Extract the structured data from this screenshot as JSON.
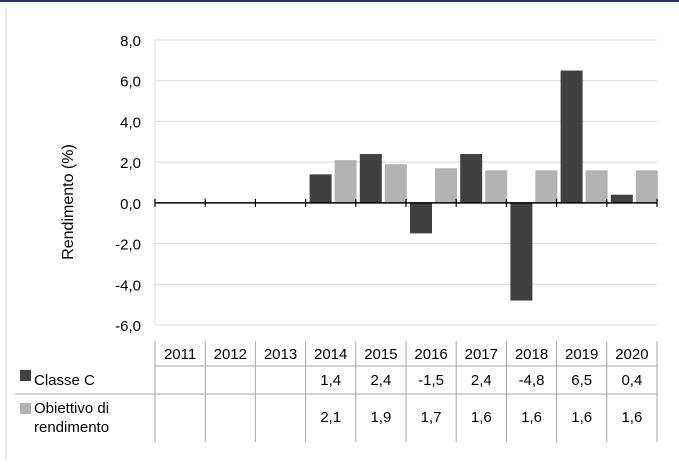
{
  "chart_data": {
    "type": "bar",
    "title": "",
    "xlabel": "",
    "ylabel": "Rendimento (%)",
    "ylim": [
      -6,
      8
    ],
    "yticks": [
      "8,0",
      "6,0",
      "4,0",
      "2,0",
      "0,0",
      "-2,0",
      "-4,0",
      "-6,0"
    ],
    "ytick_values": [
      8,
      6,
      4,
      2,
      0,
      -2,
      -4,
      -6
    ],
    "grid": true,
    "legend": "table-below",
    "categories": [
      "2011",
      "2012",
      "2013",
      "2014",
      "2015",
      "2016",
      "2017",
      "2018",
      "2019",
      "2020"
    ],
    "series": [
      {
        "name": "Classe C",
        "color": "#404040",
        "values": [
          null,
          null,
          null,
          1.4,
          2.4,
          -1.5,
          2.4,
          -4.8,
          6.5,
          0.4
        ],
        "labels": [
          "",
          "",
          "",
          "1,4",
          "2,4",
          "-1,5",
          "2,4",
          "-4,8",
          "6,5",
          "0,4"
        ]
      },
      {
        "name": "Obiettivo di rendimento",
        "name_lines": [
          "Obiettivo di",
          "rendimento"
        ],
        "color": "#b3b3b3",
        "values": [
          null,
          null,
          null,
          2.1,
          1.9,
          1.7,
          1.6,
          1.6,
          1.6,
          1.6
        ],
        "labels": [
          "",
          "",
          "",
          "2,1",
          "1,9",
          "1,7",
          "1,6",
          "1,6",
          "1,6",
          "1,6"
        ]
      }
    ]
  }
}
